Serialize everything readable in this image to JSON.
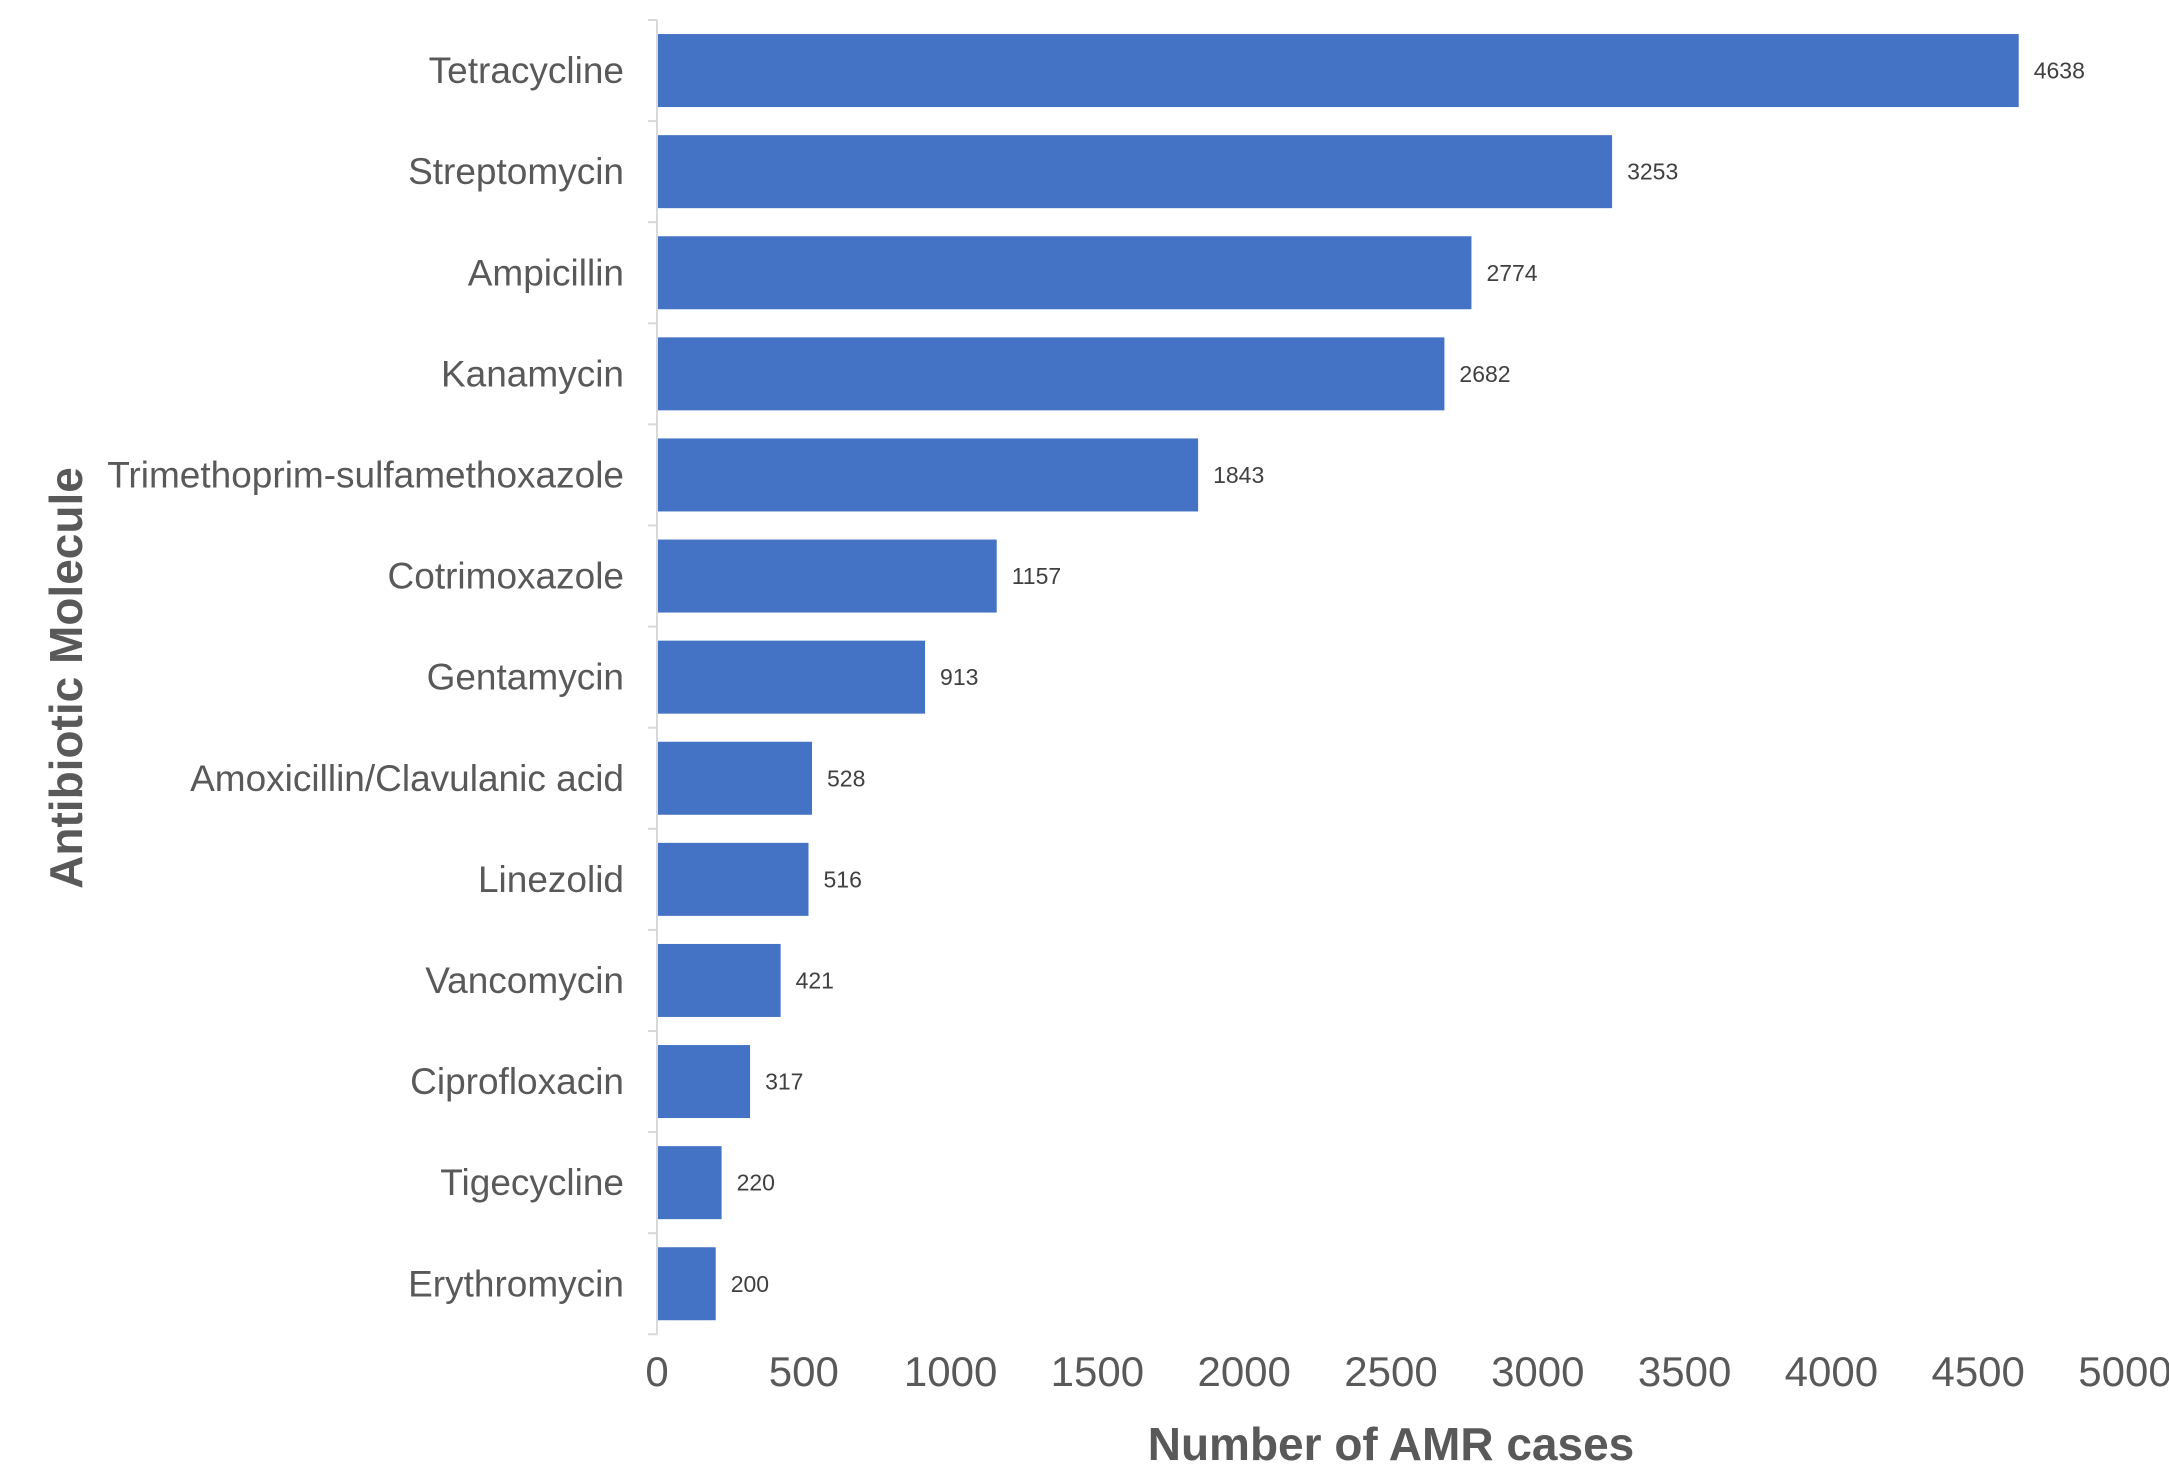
{
  "chart_data": {
    "type": "bar",
    "orientation": "horizontal",
    "categories": [
      "Tetracycline",
      "Streptomycin",
      "Ampicillin",
      "Kanamycin",
      "Trimethoprim-sulfamethoxazole",
      "Cotrimoxazole",
      "Gentamycin",
      "Amoxicillin/Clavulanic acid",
      "Linezolid",
      "Vancomycin",
      "Ciprofloxacin",
      "Tigecycline",
      "Erythromycin"
    ],
    "values": [
      4638,
      3253,
      2774,
      2682,
      1843,
      1157,
      913,
      528,
      516,
      421,
      317,
      220,
      200
    ],
    "value_labels": [
      "4638",
      "3253",
      "2774",
      "2682",
      "1843",
      "1157",
      "913",
      "528",
      "516",
      "421",
      "317",
      "220",
      "200"
    ],
    "xlabel": "Number of  AMR cases",
    "ylabel": "Antibiotic Molecule",
    "xlim": [
      0,
      5000
    ],
    "xticks": [
      "0",
      "500",
      "1000",
      "1500",
      "2000",
      "2500",
      "3000",
      "3500",
      "4000",
      "4500",
      "5000"
    ],
    "grid": false,
    "legend": "none",
    "bar_color": "#4472C4"
  }
}
